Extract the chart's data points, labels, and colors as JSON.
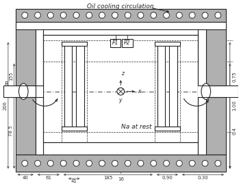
{
  "title": "Oil cooling circulation",
  "bg_color": "#ffffff",
  "gray_color": "#b0b0b0",
  "dark_line": "#222222",
  "dim_color": "#333333",
  "annotation_center": "Na at rest",
  "p1_label": "P1",
  "p2_label": "P2"
}
